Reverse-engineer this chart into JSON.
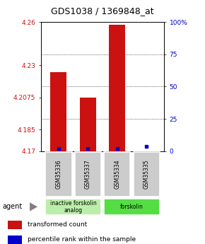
{
  "title": "GDS1038 / 1369848_at",
  "samples": [
    "GSM35336",
    "GSM35337",
    "GSM35334",
    "GSM35335"
  ],
  "red_values": [
    4.225,
    4.2075,
    4.258,
    4.17
  ],
  "blue_values": [
    2,
    2,
    2,
    4
  ],
  "ymin": 4.17,
  "ymax": 4.26,
  "yticks": [
    4.17,
    4.185,
    4.2075,
    4.23,
    4.26
  ],
  "ytick_labels": [
    "4.17",
    "4.185",
    "4.2075",
    "4.23",
    "4.26"
  ],
  "right_yticks_pct": [
    0,
    25,
    50,
    75,
    100
  ],
  "right_ytick_labels": [
    "0",
    "25",
    "50",
    "75",
    "100%"
  ],
  "groups": [
    {
      "label": "inactive forskolin\nanalog",
      "samples": [
        0,
        1
      ],
      "color": "#bbeeaa"
    },
    {
      "label": "forskolin",
      "samples": [
        2,
        3
      ],
      "color": "#55dd44"
    }
  ],
  "bar_color": "#cc1111",
  "blue_color": "#0000cc",
  "agent_label": "agent",
  "legend_red": "transformed count",
  "legend_blue": "percentile rank within the sample",
  "title_fontsize": 9,
  "tick_fontsize": 6.5,
  "bar_width": 0.55,
  "sample_box_color": "#cccccc",
  "grid_linestyle": "dotted",
  "grid_color": "black",
  "grid_linewidth": 0.5
}
